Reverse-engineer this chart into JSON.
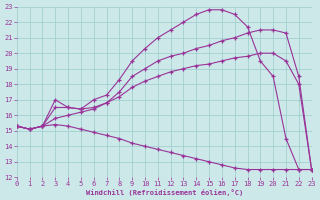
{
  "xlabel": "Windchill (Refroidissement éolien,°C)",
  "background_color": "#cce8e8",
  "grid_color": "#99cccc",
  "line_color": "#993399",
  "xlim": [
    0,
    23
  ],
  "ylim": [
    12,
    23
  ],
  "xticks": [
    0,
    1,
    2,
    3,
    4,
    5,
    6,
    7,
    8,
    9,
    10,
    11,
    12,
    13,
    14,
    15,
    16,
    17,
    18,
    19,
    20,
    21,
    22,
    23
  ],
  "yticks": [
    12,
    13,
    14,
    15,
    16,
    17,
    18,
    19,
    20,
    21,
    22,
    23
  ],
  "series": [
    {
      "x": [
        0,
        1,
        2,
        3,
        4,
        5,
        6,
        7,
        8,
        9,
        10,
        11,
        12,
        13,
        14,
        15,
        16,
        17,
        18,
        19,
        20,
        21,
        22,
        23
      ],
      "y": [
        15.3,
        15.1,
        15.3,
        17.0,
        16.5,
        16.4,
        17.0,
        17.3,
        18.3,
        19.5,
        20.3,
        21.0,
        21.5,
        22.0,
        22.5,
        22.8,
        22.8,
        22.5,
        21.7,
        19.5,
        18.5,
        14.5,
        12.5,
        12.5
      ]
    },
    {
      "x": [
        0,
        1,
        2,
        3,
        4,
        5,
        6,
        7,
        8,
        9,
        10,
        11,
        12,
        13,
        14,
        15,
        16,
        17,
        18,
        19,
        20,
        21,
        22,
        23
      ],
      "y": [
        15.3,
        15.1,
        15.3,
        16.5,
        16.5,
        16.4,
        16.5,
        16.8,
        17.5,
        18.5,
        19.0,
        19.5,
        19.8,
        20.0,
        20.3,
        20.5,
        20.8,
        21.0,
        21.3,
        21.5,
        21.5,
        21.3,
        18.5,
        12.5
      ]
    },
    {
      "x": [
        0,
        1,
        2,
        3,
        4,
        5,
        6,
        7,
        8,
        9,
        10,
        11,
        12,
        13,
        14,
        15,
        16,
        17,
        18,
        19,
        20,
        21,
        22,
        23
      ],
      "y": [
        15.3,
        15.1,
        15.3,
        15.8,
        16.0,
        16.2,
        16.4,
        16.8,
        17.2,
        17.8,
        18.2,
        18.5,
        18.8,
        19.0,
        19.2,
        19.3,
        19.5,
        19.7,
        19.8,
        20.0,
        20.0,
        19.5,
        18.0,
        12.5
      ]
    },
    {
      "x": [
        0,
        1,
        2,
        3,
        4,
        5,
        6,
        7,
        8,
        9,
        10,
        11,
        12,
        13,
        14,
        15,
        16,
        17,
        18,
        19,
        20,
        21,
        22,
        23
      ],
      "y": [
        15.3,
        15.1,
        15.3,
        15.4,
        15.3,
        15.1,
        14.9,
        14.7,
        14.5,
        14.2,
        14.0,
        13.8,
        13.6,
        13.4,
        13.2,
        13.0,
        12.8,
        12.6,
        12.5,
        12.5,
        12.5,
        12.5,
        12.5,
        12.5
      ]
    }
  ]
}
